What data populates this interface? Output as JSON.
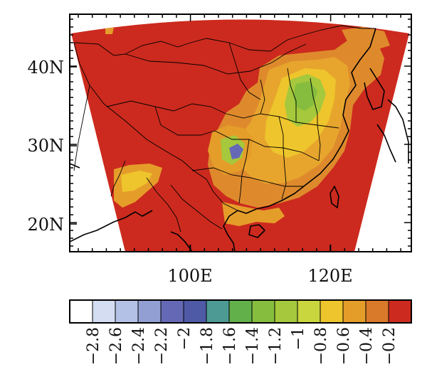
{
  "map": {
    "lat_ticks": [
      "40N",
      "30N",
      "20N"
    ],
    "lon_ticks": [
      "100E",
      "120E"
    ],
    "extent": {
      "lon": [
        82,
        132
      ],
      "lat": [
        16.5,
        45.5
      ]
    },
    "colors": {
      "land_bg": "#ffffff",
      "domain_fill": "#cc2a1e",
      "coast": "#000000"
    }
  },
  "colorbar": {
    "labels": [
      "−2.8",
      "−2.6",
      "−2.4",
      "−2.2",
      "−2",
      "−1.8",
      "−1.6",
      "−1.4",
      "−1.2",
      "−1",
      "−0.8",
      "−0.6",
      "−0.4",
      "−0.2"
    ],
    "colors": [
      "#ffffff",
      "#d4ddf2",
      "#b3c1e6",
      "#919fd3",
      "#6569b5",
      "#4e5aa6",
      "#4d9a95",
      "#62b04a",
      "#86bd3e",
      "#a5c83c",
      "#c9d63e",
      "#eec52c",
      "#e59d2a",
      "#d9792a",
      "#cc2a1e"
    ]
  }
}
